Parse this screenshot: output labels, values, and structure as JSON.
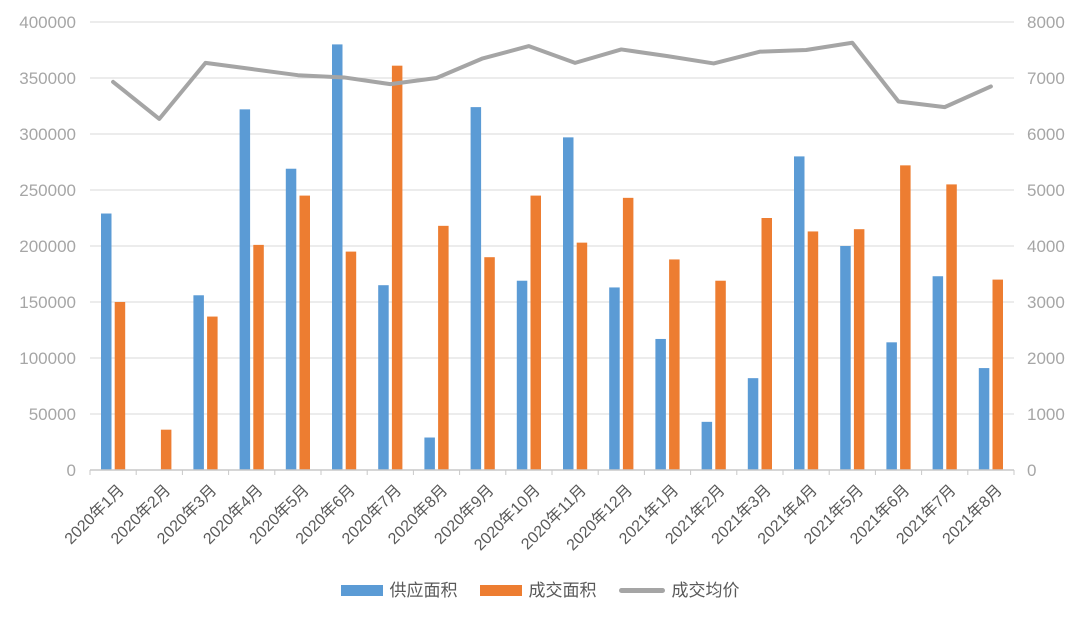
{
  "chart_data": {
    "type": "combo",
    "title": "",
    "categories": [
      "2020年1月",
      "2020年2月",
      "2020年3月",
      "2020年4月",
      "2020年5月",
      "2020年6月",
      "2020年7月",
      "2020年8月",
      "2020年9月",
      "2020年10月",
      "2020年11月",
      "2020年12月",
      "2021年1月",
      "2021年2月",
      "2021年3月",
      "2021年4月",
      "2021年5月",
      "2021年6月",
      "2021年7月",
      "2021年8月"
    ],
    "series": [
      {
        "name": "供应面积",
        "type": "bar",
        "axis": "left",
        "color": "#5B9BD5",
        "values": [
          229000,
          0,
          156000,
          322000,
          269000,
          380000,
          165000,
          29000,
          324000,
          169000,
          297000,
          163000,
          117000,
          43000,
          82000,
          280000,
          200000,
          114000,
          173000,
          91000
        ]
      },
      {
        "name": "成交面积",
        "type": "bar",
        "axis": "left",
        "color": "#ED7D31",
        "values": [
          150000,
          36000,
          137000,
          201000,
          245000,
          195000,
          361000,
          218000,
          190000,
          245000,
          203000,
          243000,
          188000,
          169000,
          225000,
          213000,
          215000,
          272000,
          255000,
          170000
        ]
      },
      {
        "name": "成交均价",
        "type": "line",
        "axis": "right",
        "color": "#A5A5A5",
        "values": [
          6930,
          6270,
          7270,
          7160,
          7050,
          7010,
          6890,
          7000,
          7350,
          7570,
          7270,
          7510,
          7390,
          7260,
          7470,
          7500,
          7630,
          6580,
          6480,
          6850
        ]
      }
    ],
    "left_axis": {
      "min": 0,
      "max": 400000,
      "step": 50000,
      "tick_labels": [
        "0",
        "50000",
        "100000",
        "150000",
        "200000",
        "250000",
        "300000",
        "350000",
        "400000"
      ]
    },
    "right_axis": {
      "min": 0,
      "max": 8000,
      "step": 1000,
      "tick_labels": [
        "0",
        "1000",
        "2000",
        "3000",
        "4000",
        "5000",
        "6000",
        "7000",
        "8000"
      ]
    },
    "legend": [
      "供应面积",
      "成交面积",
      "成交均价"
    ],
    "legend_position": "bottom",
    "grid": true,
    "x_label_rotation": -45
  },
  "colors": {
    "background": "#FFFFFF",
    "grid": "#D9D9D9",
    "axis": "#C8C8C8",
    "y_label": "#A6A6A6",
    "x_label": "#595959",
    "legend_text": "#595959"
  }
}
